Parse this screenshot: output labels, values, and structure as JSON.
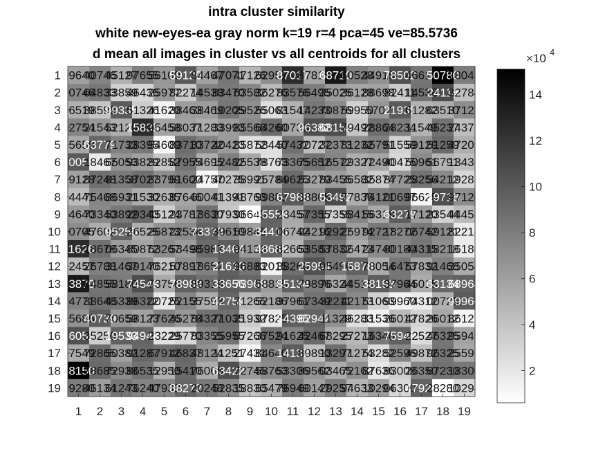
{
  "chart_data": {
    "type": "heatmap",
    "title": [
      "intra cluster similarity",
      "white new-eyes-ea gray norm k=19 r=4 pca=45 ve=85.5736",
      "d mean all images in cluster vs all centroids for all clusters"
    ],
    "xlabel": "",
    "ylabel": "",
    "x_categories": [
      1,
      2,
      3,
      4,
      5,
      6,
      7,
      8,
      9,
      10,
      11,
      12,
      13,
      14,
      15,
      16,
      17,
      18,
      19
    ],
    "y_categories": [
      1,
      2,
      3,
      4,
      5,
      6,
      7,
      8,
      9,
      10,
      11,
      12,
      13,
      14,
      15,
      16,
      17,
      18,
      19
    ],
    "colormap": "gray reversed (white = low, black = high)",
    "colorbar": {
      "ticks": [
        2,
        4,
        6,
        8,
        10,
        12,
        14
      ],
      "exponent_label": "×10",
      "exponent": "4",
      "range": [
        0.6,
        15.1
      ]
    },
    "values_x1e4": [
      [
        5.96,
        7.6,
        5.1,
        7.9,
        6.5,
        10.0,
        5.9,
        8.4,
        4.7,
        7.1,
        12.6,
        5.7,
        13.7,
        7.8,
        6.8,
        10.5,
        8.4,
        15.0,
        8.0
      ],
      [
        7.4,
        8.3,
        3.3,
        2.9,
        6.4,
        3.6,
        7.7,
        8.2,
        7.4,
        4.5,
        8.3,
        7.9,
        6.3,
        5.6,
        5.9,
        3.5,
        8.6,
        10.8,
        4.1
      ],
      [
        5.1,
        3.9,
        9.9,
        3.5,
        1.3,
        6.2,
        6.2,
        8.4,
        6.9,
        2.5,
        5.0,
        8.3,
        7.2,
        3.3,
        6.5,
        9.9,
        5.0,
        5.2,
        7.1
      ],
      [
        7.5,
        6.4,
        5.2,
        12.6,
        5.8,
        5.9,
        5.3,
        6.3,
        7.3,
        8.9,
        5.6,
        10.6,
        10.7,
        3.9,
        8.8,
        7.9,
        4.9,
        8.6,
        4.3
      ],
      [
        5.6,
        9.3,
        7.7,
        8.3,
        0.9,
        8.9,
        7.7,
        6.3,
        2.4,
        2.5,
        8.7,
        4.4,
        7.4,
        7.2,
        7.7,
        3.2,
        6.7,
        9.1,
        5.2
      ],
      [
        10.0,
        1.8,
        6.7,
        6.0,
        3.9,
        8.5,
        5.2,
        7.9,
        5.6,
        2.4,
        7.8,
        8.5,
        7.5,
        5.2,
        5.7,
        2.9,
        7.2,
        4.9,
        4.3
      ],
      [
        5.9,
        8.8,
        8.1,
        8.8,
        7.0,
        7.9,
        1.0,
        4.0,
        4.7,
        5.3,
        9.0,
        5.8,
        6.2,
        5.2,
        3.5,
        6.5,
        8.6,
        7.3,
        2.8
      ],
      [
        4.4,
        7.5,
        6.9,
        5.3,
        5.0,
        5.7,
        6.0,
        4.1,
        3.9,
        7.6,
        9.9,
        6.9,
        10.8,
        5.3,
        7.9,
        8.3,
        1.2,
        10.6,
        7.0
      ],
      [
        6.4,
        7.3,
        8.3,
        9.2,
        3.4,
        6.2,
        8.7,
        3.8,
        0.8,
        9.6,
        5.5,
        9.2,
        3.4,
        7.5,
        5.5,
        9.8,
        6.3,
        3.2,
        4.5
      ],
      [
        7.0,
        5.2,
        9.5,
        5.2,
        6.8,
        7.2,
        9.4,
        7.3,
        6.1,
        9.4,
        5.4,
        6.7,
        9.2,
        6.2,
        8.2,
        7.5,
        8.2,
        7.2,
        1.8
      ],
      [
        12.6,
        8.7,
        6.3,
        5.8,
        7.2,
        6.3,
        9.0,
        9.8,
        6.4,
        9.4,
        4.9,
        8.9,
        8.3,
        5.5,
        7.2,
        7.3,
        8.4,
        7.0,
        1.8
      ],
      [
        4.5,
        7.8,
        7.9,
        7.3,
        4.0,
        7.0,
        7.8,
        9.7,
        8.5,
        1.3,
        8.8,
        10.5,
        8.2,
        9.5,
        5.4,
        8.4,
        5.8,
        7.8,
        5.4
      ],
      [
        13.7,
        8.5,
        8.1,
        10.7,
        5.4,
        9.7,
        8.7,
        9.8,
        9.3,
        6.3,
        9.6,
        8.1,
        5.6,
        7.9,
        9.8,
        8.4,
        5.3,
        9.3,
        9.6
      ],
      [
        7.7,
        8.6,
        8.3,
        8.6,
        2.0,
        7.5,
        5.3,
        9.3,
        4.7,
        5.7,
        6.5,
        8.6,
        9.1,
        7.3,
        3.2,
        1.4,
        1.8,
        5.1,
        9.9
      ],
      [
        6.8,
        9.7,
        6.5,
        5.9,
        7.7,
        6.5,
        8.7,
        8.7,
        3.5,
        1.9,
        9.7,
        9.5,
        6.9,
        2.4,
        1.4,
        4.6,
        3.1,
        5.6,
        1.2
      ],
      [
        10.5,
        3.5,
        9.5,
        9.4,
        2.3,
        2.9,
        7.5,
        8.5,
        2.9,
        8.7,
        7.5,
        9.1,
        5.4,
        4.7,
        8.2,
        9.5,
        2.7,
        8.4,
        5.9
      ],
      [
        5.4,
        8.9,
        6.0,
        9.2,
        8.7,
        9.2,
        6.8,
        4.1,
        1.2,
        7.4,
        9.8,
        4.1,
        8.9,
        5.2,
        2.7,
        7.4,
        4.2,
        8.5,
        5.6
      ],
      [
        15.0,
        9.1,
        7.2,
        8.6,
        5.1,
        9.0,
        5.4,
        10.6,
        6.3,
        7.2,
        7.4,
        6.7,
        5.3,
        6.9,
        2.0,
        3.4,
        7.6,
        8.7,
        8.3
      ],
      [
        8.0,
        6.1,
        8.4,
        7.6,
        7.6,
        9.3,
        8.2,
        7.2,
        4.2,
        5.2,
        8.1,
        6.0,
        8.0,
        4.9,
        6.1,
        2.9,
        9.5,
        0.0,
        2.9
      ]
    ],
    "cell_labels": [
      [
        "59640",
        "40746",
        "45127",
        "97655",
        "56100",
        "59120",
        "84467",
        "47071",
        "47126",
        "62957",
        "87017",
        "87815",
        "68710",
        "60528",
        "44915",
        "78502",
        "46615",
        "50780",
        "78046"
      ],
      [
        "20746",
        "64833",
        "33859",
        "46436",
        "25977",
        "82274",
        "14538",
        "83470",
        "63582",
        "36276",
        "83576",
        "56495",
        "35025",
        "36128",
        "88698",
        "82411",
        "14538",
        "24114",
        "32784"
      ],
      [
        "36519",
        "38595",
        "99335",
        "51326",
        "41620",
        "38463",
        "38469",
        "10205",
        "29526",
        "55063",
        "81547",
        "14233",
        "70876",
        "59950",
        "5707",
        "21930",
        "61282",
        "63510",
        "37128"
      ],
      [
        "42754",
        "21543",
        "52126",
        "15835",
        "95458",
        "58037",
        "71283",
        "33993",
        "85566",
        "64260",
        "60730",
        "96382",
        "68153",
        "79492",
        "28864",
        "28234",
        "11549",
        "45237",
        "24372"
      ],
      [
        "55650",
        "63779",
        "71733",
        "28395",
        "54609",
        "83710",
        "33722",
        "40423",
        "85872",
        "58440",
        "57432",
        "70727",
        "32373",
        "81232",
        "65791",
        "51559",
        "59129",
        "51259",
        "47209"
      ],
      [
        "60051",
        "18467",
        "65053",
        "93829",
        "82852",
        "87955",
        "74695",
        "12482",
        "25538",
        "78763",
        "73365",
        "75652",
        "16572",
        "29327",
        "72490",
        "40475",
        "50961",
        "56791",
        "13436"
      ],
      [
        "59128",
        "87248",
        "81358",
        "37027",
        "83799",
        "51600",
        "24757",
        "40275",
        "38991",
        "25784",
        "89625",
        "53279",
        "83455",
        "36582",
        "35874",
        "87725",
        "28256",
        "54212",
        "19282"
      ],
      [
        "24441",
        "75468",
        "86931",
        "21530",
        "32635",
        "87646",
        "60041",
        "41391",
        "48763",
        "99883",
        "67988",
        "38805",
        "53492",
        "77836",
        "74121",
        "00697",
        "96625",
        "19718",
        "97120"
      ],
      [
        "94640",
        "73340",
        "53892",
        "29343",
        "45124",
        "23787",
        "13630",
        "27930",
        "96645",
        "95559",
        "23457",
        "57355",
        "17355",
        "98415",
        "56318",
        "63279",
        "17120",
        "23544",
        "44455"
      ],
      [
        "10705",
        "47602",
        "95255",
        "26525",
        "26873",
        "22534",
        "73373",
        "39610",
        "59845",
        "34416",
        "06742",
        "94216",
        "92927",
        "25974",
        "92727",
        "18272",
        "06742",
        "59121",
        "82218"
      ],
      [
        "11626",
        "18678",
        "06345",
        "80872",
        "63267",
        "53498",
        "95987",
        "13464",
        "94133",
        "48688",
        "82663",
        "53583",
        "57832",
        "06473",
        "24740",
        "80180",
        "44315",
        "18218",
        "16180"
      ],
      [
        "12457",
        "26788",
        "31467",
        "39140",
        "76210",
        "57897",
        "18652",
        "21610",
        "96883",
        "82015",
        "38266",
        "25954",
        "95496",
        "15878",
        "78054",
        "16473",
        "57832",
        "91468",
        "35054"
      ],
      [
        "13870",
        "84855",
        "58180",
        "74549",
        "73756",
        "78988",
        "89319",
        "33656",
        "73968",
        "58815",
        "85134",
        "79896",
        "76324",
        "44515",
        "38193",
        "37964",
        "45015",
        "63134",
        "68964"
      ],
      [
        "14771",
        "38648",
        "45339",
        "86322",
        "00725",
        "52155",
        "37593",
        "42759",
        "71265",
        "52186",
        "37961",
        "67349",
        "32211",
        "42173",
        "51063",
        "99960",
        "74312",
        "00725",
        "99960"
      ],
      [
        "15686",
        "40739",
        "70659",
        "58123",
        "77626",
        "45278",
        "84327",
        "71035",
        "21932",
        "97825",
        "34395",
        "62942",
        "11329",
        "46283",
        "31536",
        "26012",
        "47826",
        "26012",
        "86127"
      ],
      [
        "16052",
        "35250",
        "19533",
        "94948",
        "23229",
        "25770",
        "83355",
        "25955",
        "67266",
        "37524",
        "91625",
        "42467",
        "68295",
        "27273",
        "16346",
        "75949",
        "22527",
        "46325",
        "95949"
      ],
      [
        "17549",
        "72865",
        "50382",
        "91287",
        "67912",
        "46837",
        "48124",
        "11251",
        "27431",
        "84640",
        "14133",
        "89890",
        "13297",
        "71274",
        "53282",
        "52596",
        "49872",
        "96325",
        "25596"
      ],
      [
        "18150",
        "78685",
        "72938",
        "86535",
        "12950",
        "15410",
        "76066",
        "63422",
        "72745",
        "58763",
        "53306",
        "89562",
        "03465",
        "72162",
        "87636",
        "83008",
        "26350",
        "67230",
        "18300"
      ],
      [
        "19280",
        "46134",
        "61243",
        "76240",
        "47932",
        "88272",
        "20248",
        "52835",
        "18830",
        "65479",
        "76949",
        "60147",
        "29257",
        "94633",
        "10294",
        "06300",
        "47920",
        "28280",
        "10294"
      ]
    ]
  },
  "colorbar_ticks": [
    "2",
    "4",
    "6",
    "8",
    "10",
    "12",
    "14"
  ],
  "colorbar_exponent_base": "×10",
  "colorbar_exponent_power": "4"
}
